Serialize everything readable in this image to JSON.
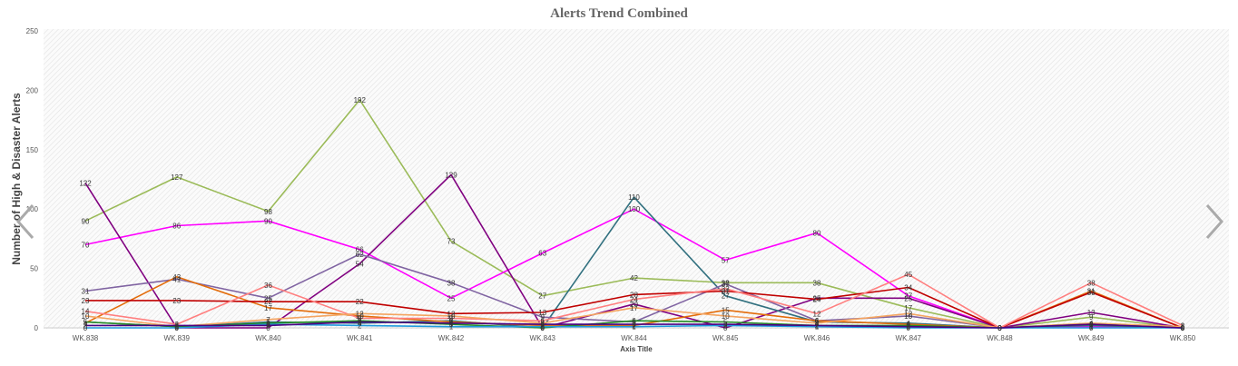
{
  "chart_data": {
    "type": "line",
    "title": "Alerts Trend Combined",
    "xlabel": "Axis Title",
    "ylabel": "Number of High & Disaster Alerts",
    "categories": [
      "WK.838",
      "WK.839",
      "WK.840",
      "WK.841",
      "WK.842",
      "WK.843",
      "WK.844",
      "WK.845",
      "WK.846",
      "WK.847",
      "WK.848",
      "WK.849",
      "WK.850"
    ],
    "ylim": [
      0,
      250
    ],
    "yticks": [
      0,
      50,
      100,
      150,
      200,
      250
    ],
    "grid": "hatched background",
    "legend": "none",
    "series": [
      {
        "color": "#9bbb59",
        "values": [
          90,
          127,
          98,
          192,
          73,
          27,
          42,
          38,
          38,
          17,
          0,
          9,
          0
        ]
      },
      {
        "color": "#ff00ff",
        "values": [
          70,
          86,
          90,
          66,
          25,
          63,
          100,
          57,
          80,
          27,
          0,
          1,
          0
        ]
      },
      {
        "color": "#800080",
        "values": [
          122,
          0,
          0,
          54,
          129,
          0,
          20,
          0,
          25,
          25,
          0,
          13,
          0
        ]
      },
      {
        "color": "#31707f",
        "values": [
          5,
          1,
          5,
          4,
          6,
          0,
          110,
          27,
          5,
          4,
          0,
          2,
          0
        ]
      },
      {
        "color": "#8064a2",
        "values": [
          31,
          41,
          25,
          62,
          38,
          9,
          5,
          37,
          6,
          10,
          0,
          3,
          0
        ]
      },
      {
        "color": "#e36c0a",
        "values": [
          4,
          43,
          17,
          10,
          5,
          2,
          2,
          15,
          6,
          3,
          0,
          31,
          0
        ]
      },
      {
        "color": "#c00000",
        "values": [
          23,
          23,
          22,
          22,
          12,
          13,
          28,
          31,
          24,
          34,
          0,
          30,
          0
        ]
      },
      {
        "color": "#ff7f7f",
        "values": [
          14,
          3,
          36,
          8,
          8,
          6,
          24,
          33,
          12,
          45,
          0,
          38,
          2
        ]
      },
      {
        "color": "#f4a460",
        "values": [
          10,
          1,
          7,
          12,
          10,
          4,
          17,
          10,
          4,
          12,
          0,
          4,
          1
        ]
      },
      {
        "color": "#228b22",
        "values": [
          5,
          1,
          4,
          6,
          3,
          0,
          6,
          5,
          2,
          2,
          0,
          3,
          0
        ]
      },
      {
        "color": "#1f9bde",
        "values": [
          0,
          0,
          3,
          2,
          1,
          1,
          1,
          2,
          1,
          0,
          0,
          0,
          0
        ]
      },
      {
        "color": "#4b0082",
        "values": [
          2,
          2,
          2,
          5,
          4,
          3,
          3,
          3,
          2,
          1,
          0,
          3,
          0
        ]
      }
    ]
  },
  "nav": {
    "prev_icon": "chevron-left-icon",
    "next_icon": "chevron-right-icon"
  }
}
